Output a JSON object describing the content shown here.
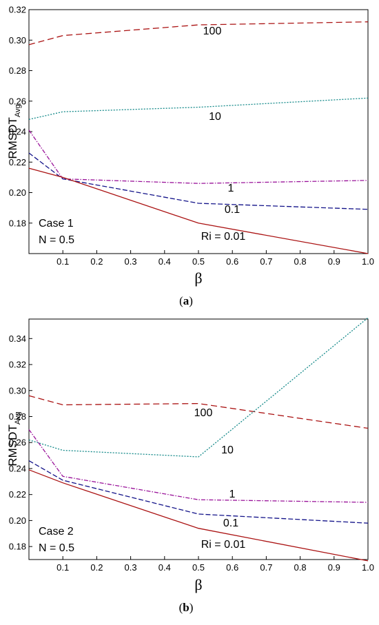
{
  "chart_data": [
    {
      "type": "line",
      "caption": "(a)",
      "caption_letter": "a",
      "ylabel": "RMSDT",
      "ylabel_sub": "Avg",
      "xlabel": "β",
      "xlim": [
        0,
        1.0
      ],
      "ylim": [
        0.16,
        0.32
      ],
      "x_ticks": [
        "0.1",
        "0.2",
        "0.3",
        "0.4",
        "0.5",
        "0.6",
        "0.7",
        "0.8",
        "0.9",
        "1.0"
      ],
      "y_ticks": [
        "0.18",
        "0.20",
        "0.22",
        "0.24",
        "0.26",
        "0.28",
        "0.30",
        "0.32"
      ],
      "x": [
        0.0,
        0.1,
        0.5,
        1.0
      ],
      "series": [
        {
          "name": "100",
          "values": [
            0.297,
            0.303,
            0.31,
            0.312
          ],
          "color": "#aa1111",
          "dash": "9,5"
        },
        {
          "name": "10",
          "values": [
            0.248,
            0.253,
            0.256,
            0.262
          ],
          "color": "#118888",
          "dash": "2,2"
        },
        {
          "name": "1",
          "values": [
            0.241,
            0.209,
            0.206,
            0.208
          ],
          "color": "#991199",
          "dash": "6,2,1.5,2"
        },
        {
          "name": "0.1",
          "values": [
            0.226,
            0.209,
            0.193,
            0.189
          ],
          "color": "#111188",
          "dash": "7,3"
        },
        {
          "name": "Ri = 0.01",
          "values": [
            0.216,
            0.21,
            0.18,
            0.16
          ],
          "color": "#aa1111",
          "dash": ""
        }
      ],
      "annotations": [
        "Case 1",
        "N = 0.5"
      ]
    },
    {
      "type": "line",
      "caption": "(b)",
      "caption_letter": "b",
      "ylabel": "RMSDT",
      "ylabel_sub": "Avg",
      "xlabel": "β",
      "xlim": [
        0,
        1.0
      ],
      "ylim": [
        0.17,
        0.355
      ],
      "x_ticks": [
        "0.1",
        "0.2",
        "0.3",
        "0.4",
        "0.5",
        "0.6",
        "0.7",
        "0.8",
        "0.9",
        "1.0"
      ],
      "y_ticks": [
        "0.18",
        "0.20",
        "0.22",
        "0.24",
        "0.26",
        "0.28",
        "0.30",
        "0.32",
        "0.34"
      ],
      "x": [
        0.0,
        0.1,
        0.5,
        1.0
      ],
      "series": [
        {
          "name": "100",
          "values": [
            0.296,
            0.289,
            0.29,
            0.271
          ],
          "color": "#aa1111",
          "dash": "9,5"
        },
        {
          "name": "10",
          "values": [
            0.262,
            0.254,
            0.249,
            0.356
          ],
          "color": "#118888",
          "dash": "2,2"
        },
        {
          "name": "1",
          "values": [
            0.27,
            0.234,
            0.216,
            0.214
          ],
          "color": "#991199",
          "dash": "6,2,1.5,2"
        },
        {
          "name": "0.1",
          "values": [
            0.246,
            0.231,
            0.205,
            0.198
          ],
          "color": "#111188",
          "dash": "7,3"
        },
        {
          "name": "Ri = 0.01",
          "values": [
            0.239,
            0.229,
            0.194,
            0.169
          ],
          "color": "#aa1111",
          "dash": ""
        }
      ],
      "annotations": [
        "Case 2",
        "N = 0.5"
      ]
    }
  ]
}
